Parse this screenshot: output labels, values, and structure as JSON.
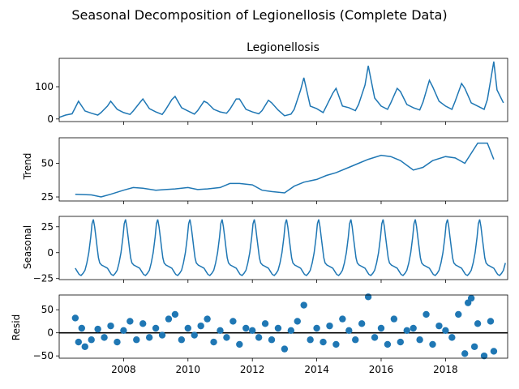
{
  "figure": {
    "title": "Seasonal Decomposition of Legionellosis (Complete Data)",
    "colors": {
      "series": "#1f77b4",
      "axis": "#000000",
      "zero_line": "#000000"
    }
  },
  "chart_data": [
    {
      "type": "line",
      "title": "Legionellosis",
      "ylabel": "",
      "xlim": [
        2006.0,
        2019.93
      ],
      "ylim": [
        -8,
        188
      ],
      "xticks": [
        2008,
        2010,
        2012,
        2014,
        2016,
        2018
      ],
      "xtick_labels": [],
      "yticks": [
        0,
        100
      ],
      "ytick_labels": [
        "0",
        "100"
      ],
      "x": [
        2006.0,
        2006.2,
        2006.4,
        2006.5,
        2006.6,
        2006.8,
        2007.0,
        2007.2,
        2007.3,
        2007.5,
        2007.6,
        2007.8,
        2008.0,
        2008.2,
        2008.3,
        2008.5,
        2008.6,
        2008.8,
        2009.0,
        2009.2,
        2009.3,
        2009.5,
        2009.6,
        2009.8,
        2010.0,
        2010.2,
        2010.3,
        2010.5,
        2010.6,
        2010.8,
        2011.0,
        2011.2,
        2011.3,
        2011.5,
        2011.6,
        2011.8,
        2012.0,
        2012.2,
        2012.3,
        2012.5,
        2012.6,
        2012.8,
        2013.0,
        2013.2,
        2013.3,
        2013.5,
        2013.6,
        2013.8,
        2014.0,
        2014.2,
        2014.3,
        2014.5,
        2014.6,
        2014.8,
        2015.0,
        2015.2,
        2015.3,
        2015.5,
        2015.6,
        2015.8,
        2016.0,
        2016.2,
        2016.3,
        2016.5,
        2016.6,
        2016.8,
        2017.0,
        2017.2,
        2017.3,
        2017.5,
        2017.6,
        2017.8,
        2018.0,
        2018.2,
        2018.3,
        2018.5,
        2018.6,
        2018.8,
        2019.0,
        2019.2,
        2019.3,
        2019.5,
        2019.6,
        2019.8
      ],
      "values": [
        5,
        12,
        16,
        35,
        55,
        25,
        18,
        12,
        20,
        40,
        55,
        30,
        20,
        14,
        25,
        50,
        62,
        32,
        22,
        14,
        28,
        60,
        70,
        35,
        25,
        15,
        26,
        55,
        50,
        30,
        22,
        18,
        30,
        62,
        62,
        30,
        22,
        16,
        26,
        58,
        50,
        28,
        10,
        15,
        30,
        90,
        128,
        40,
        32,
        20,
        40,
        80,
        95,
        40,
        35,
        26,
        45,
        105,
        165,
        65,
        40,
        30,
        50,
        95,
        85,
        45,
        35,
        28,
        52,
        120,
        100,
        55,
        40,
        30,
        55,
        110,
        95,
        50,
        40,
        30,
        60,
        178,
        90,
        50
      ],
      "annotation_zero_line": false
    },
    {
      "type": "line",
      "title": "",
      "ylabel": "Trend",
      "xlim": [
        2006.0,
        2019.93
      ],
      "ylim": [
        22,
        69
      ],
      "xticks": [
        2008,
        2010,
        2012,
        2014,
        2016,
        2018
      ],
      "xtick_labels": [],
      "yticks": [
        25,
        50
      ],
      "ytick_labels": [
        "25",
        "50"
      ],
      "x": [
        2006.5,
        2007.0,
        2007.3,
        2007.6,
        2008.0,
        2008.3,
        2008.6,
        2009.0,
        2009.3,
        2009.6,
        2010.0,
        2010.3,
        2010.6,
        2011.0,
        2011.3,
        2011.6,
        2012.0,
        2012.3,
        2012.6,
        2013.0,
        2013.3,
        2013.6,
        2014.0,
        2014.3,
        2014.6,
        2015.0,
        2015.3,
        2015.6,
        2016.0,
        2016.3,
        2016.6,
        2017.0,
        2017.3,
        2017.6,
        2018.0,
        2018.3,
        2018.6,
        2019.0,
        2019.3,
        2019.5
      ],
      "values": [
        27,
        26.5,
        25,
        27,
        30,
        32,
        31.5,
        30,
        30.5,
        31,
        32,
        30.5,
        31,
        32,
        35,
        35,
        34,
        30,
        29,
        28,
        33,
        36,
        38,
        41,
        43,
        47,
        50,
        53,
        56,
        55,
        52,
        45,
        47,
        52,
        55,
        54,
        50,
        65,
        65,
        53
      ],
      "annotation_zero_line": false
    },
    {
      "type": "line",
      "title": "",
      "ylabel": "Seasonal",
      "xlim": [
        2006.0,
        2019.93
      ],
      "ylim": [
        -26,
        35
      ],
      "xticks": [
        2008,
        2010,
        2012,
        2014,
        2016,
        2018
      ],
      "xtick_labels": [],
      "yticks": [
        -25,
        0,
        25
      ],
      "ytick_labels": [
        "−25",
        "0",
        "25"
      ],
      "one_cycle_offsets": [
        0.0,
        0.06,
        0.12,
        0.18,
        0.24,
        0.3,
        0.36,
        0.42,
        0.48,
        0.52,
        0.56,
        0.6,
        0.64,
        0.68,
        0.72,
        0.76,
        0.82,
        0.88,
        0.94
      ],
      "one_cycle_values": [
        -15,
        -18,
        -21,
        -22,
        -20,
        -17,
        -10,
        0,
        15,
        28,
        32,
        25,
        15,
        5,
        -5,
        -10,
        -12,
        -13,
        -14
      ],
      "cycles_start": 2006.5,
      "cycles_count": 13.4,
      "annotation_zero_line": false
    },
    {
      "type": "scatter",
      "title": "",
      "ylabel": "Resid",
      "xlim": [
        2006.0,
        2019.93
      ],
      "ylim": [
        -55,
        82
      ],
      "xticks": [
        2008,
        2010,
        2012,
        2014,
        2016,
        2018
      ],
      "xtick_labels": [
        "2008",
        "2010",
        "2012",
        "2014",
        "2016",
        "2018"
      ],
      "yticks": [
        -50,
        0,
        50
      ],
      "ytick_labels": [
        "−50",
        "0",
        "50"
      ],
      "x": [
        2006.5,
        2006.6,
        2006.7,
        2006.8,
        2007.0,
        2007.2,
        2007.4,
        2007.6,
        2007.8,
        2008.0,
        2008.2,
        2008.4,
        2008.6,
        2008.8,
        2009.0,
        2009.2,
        2009.4,
        2009.6,
        2009.8,
        2010.0,
        2010.2,
        2010.4,
        2010.6,
        2010.8,
        2011.0,
        2011.2,
        2011.4,
        2011.6,
        2011.8,
        2012.0,
        2012.2,
        2012.4,
        2012.6,
        2012.8,
        2013.0,
        2013.2,
        2013.4,
        2013.6,
        2013.8,
        2014.0,
        2014.2,
        2014.4,
        2014.6,
        2014.8,
        2015.0,
        2015.2,
        2015.4,
        2015.6,
        2015.8,
        2016.0,
        2016.2,
        2016.4,
        2016.6,
        2016.8,
        2017.0,
        2017.2,
        2017.4,
        2017.6,
        2017.8,
        2018.0,
        2018.2,
        2018.4,
        2018.6,
        2018.7,
        2018.8,
        2018.9,
        2019.0,
        2019.2,
        2019.4,
        2019.5
      ],
      "values": [
        32,
        -20,
        10,
        -30,
        -15,
        8,
        -10,
        15,
        -20,
        5,
        25,
        -15,
        20,
        -10,
        10,
        -5,
        30,
        40,
        -15,
        10,
        -5,
        15,
        30,
        -20,
        5,
        -10,
        25,
        -25,
        10,
        5,
        -10,
        20,
        -15,
        10,
        -35,
        5,
        25,
        60,
        -15,
        10,
        -20,
        15,
        -25,
        30,
        5,
        -15,
        20,
        78,
        -10,
        10,
        -25,
        30,
        -20,
        5,
        10,
        -15,
        40,
        -25,
        15,
        5,
        -10,
        40,
        -45,
        65,
        75,
        -30,
        20,
        -50,
        25,
        -40
      ],
      "annotation_zero_line": true
    }
  ]
}
